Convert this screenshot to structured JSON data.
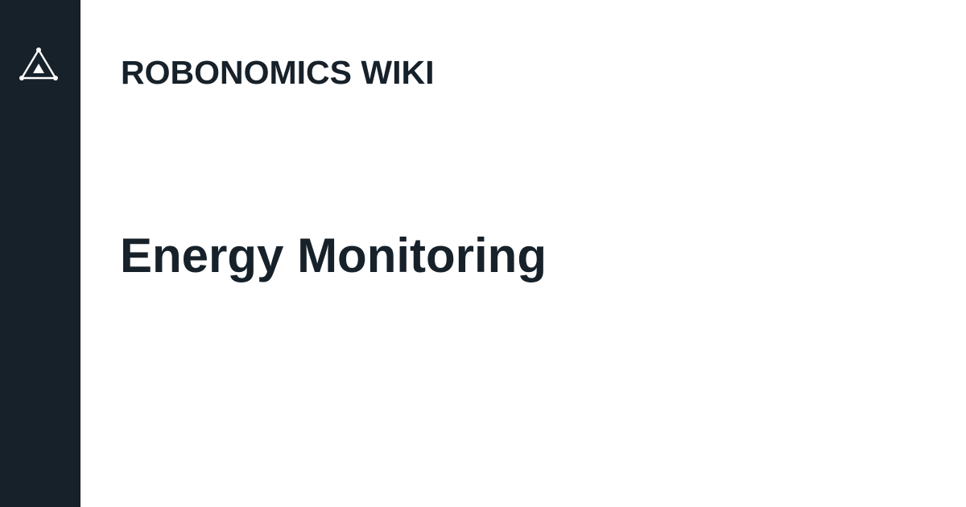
{
  "brand": {
    "logo_icon": "robonomics-triangle-icon",
    "site_name": "ROBONOMICS WIKI"
  },
  "page": {
    "title": "Energy Monitoring"
  },
  "colors": {
    "sidebar": "#17212a",
    "text": "#17212a",
    "background": "#ffffff",
    "logo": "#ffffff"
  }
}
